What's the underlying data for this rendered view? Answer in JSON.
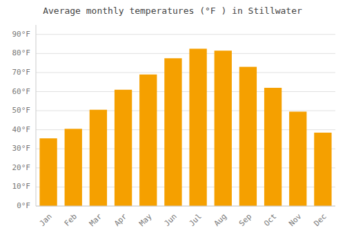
{
  "chart_data": {
    "type": "bar",
    "title": "Average monthly temperatures (°F ) in Stillwater",
    "categories": [
      "Jan",
      "Feb",
      "Mar",
      "Apr",
      "May",
      "Jun",
      "Jul",
      "Aug",
      "Sep",
      "Oct",
      "Nov",
      "Dec"
    ],
    "values": [
      35.5,
      40.5,
      50.5,
      61.0,
      69.0,
      77.5,
      82.5,
      81.5,
      73.0,
      62.0,
      49.5,
      38.5
    ],
    "color": "#F5A000",
    "ylim": [
      0,
      95
    ],
    "yticks": [
      {
        "value": 0,
        "label": "0°F"
      },
      {
        "value": 10,
        "label": "10°F"
      },
      {
        "value": 20,
        "label": "20°F"
      },
      {
        "value": 30,
        "label": "30°F"
      },
      {
        "value": 40,
        "label": "40°F"
      },
      {
        "value": 50,
        "label": "50°F"
      },
      {
        "value": 60,
        "label": "60°F"
      },
      {
        "value": 70,
        "label": "70°F"
      },
      {
        "value": 80,
        "label": "80°F"
      },
      {
        "value": 90,
        "label": "90°F"
      }
    ],
    "grid": true
  }
}
